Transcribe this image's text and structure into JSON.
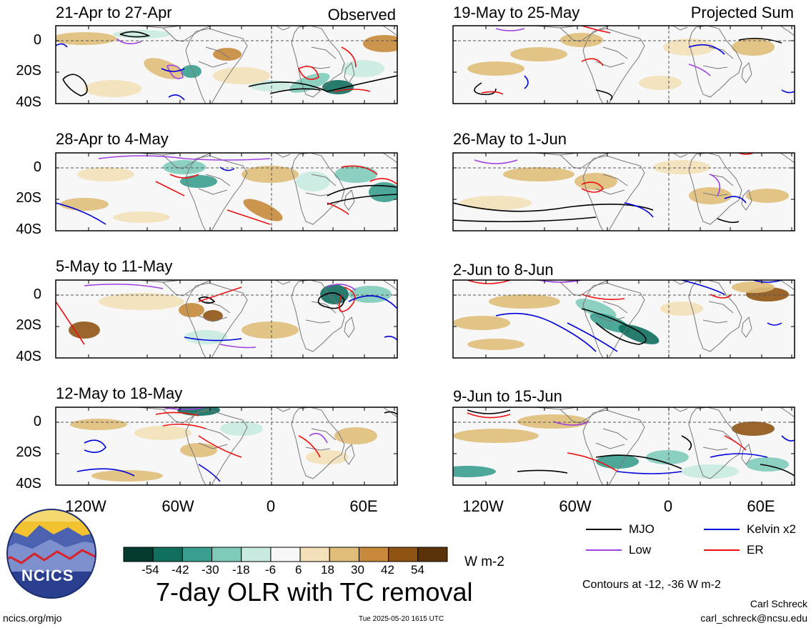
{
  "header": {
    "observed_label": "Observed",
    "projected_label": "Projected Sum"
  },
  "panels": [
    {
      "column": "observed",
      "period": "21-Apr to 27-Apr"
    },
    {
      "column": "observed",
      "period": "28-Apr to 4-May"
    },
    {
      "column": "observed",
      "period": "5-May to 11-May"
    },
    {
      "column": "observed",
      "period": "12-May to 18-May"
    },
    {
      "column": "projected",
      "period": "19-May to 25-May"
    },
    {
      "column": "projected",
      "period": "26-May to 1-Jun"
    },
    {
      "column": "projected",
      "period": "2-Jun to 8-Jun"
    },
    {
      "column": "projected",
      "period": "9-Jun to 15-Jun"
    }
  ],
  "axes": {
    "lat_ticks": [
      "0",
      "20S",
      "40S"
    ],
    "lon_ticks": [
      "120W",
      "60W",
      "0",
      "60E"
    ]
  },
  "legend": {
    "lines": [
      {
        "label": "MJO",
        "color": "#000000"
      },
      {
        "label": "Kelvin x2",
        "color": "#0000dd"
      },
      {
        "label": "Low",
        "color": "#a040e0"
      },
      {
        "label": "ER",
        "color": "#ee1111"
      }
    ],
    "contour_note": "Contours at -12, -36 W m-2"
  },
  "colorbar": {
    "ticks": [
      "-54",
      "-42",
      "-30",
      "-18",
      "-6",
      "6",
      "18",
      "30",
      "42",
      "54"
    ],
    "colors": [
      "#053b2f",
      "#0f6e5e",
      "#3a9e8e",
      "#7fcbba",
      "#c8eae0",
      "#f7f7f7",
      "#f3e0b8",
      "#dfbe7a",
      "#c68a3a",
      "#8f5414",
      "#5a3408"
    ],
    "units": "W m-2"
  },
  "footer": {
    "main_title": "7-day OLR with TC removal",
    "logo_text": "NCICS",
    "website": "ncics.org/mjo",
    "timestamp": "Tue 2025-05-20 1615 UTC",
    "author": "Carl Schreck",
    "email": "carl_schreck@ncsu.edu"
  },
  "chart_data": {
    "type": "heatmap",
    "title": "7-day OLR with TC removal",
    "variable": "OLR anomaly",
    "units": "W m-2",
    "lat_range": [
      "40S",
      "10N"
    ],
    "lon_range": [
      "150W",
      "80E"
    ],
    "panel_count": 8,
    "contour_levels": [
      -12,
      -36
    ],
    "series": [
      {
        "name": "MJO"
      },
      {
        "name": "Kelvin x2"
      },
      {
        "name": "Low"
      },
      {
        "name": "ER"
      }
    ]
  }
}
